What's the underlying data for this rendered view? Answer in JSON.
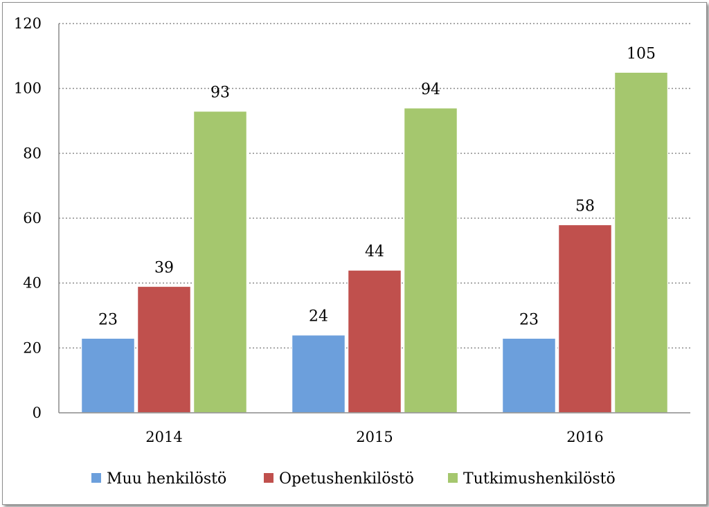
{
  "chart_data": {
    "type": "bar",
    "categories": [
      "2014",
      "2015",
      "2016"
    ],
    "series": [
      {
        "name": "Muu henkilöstö",
        "values": [
          23,
          24,
          23
        ],
        "color": "#6c9fdc"
      },
      {
        "name": "Opetushenkilöstö",
        "values": [
          39,
          44,
          58
        ],
        "color": "#c0504d"
      },
      {
        "name": "Tutkimushenkilöstö",
        "values": [
          93,
          94,
          105
        ],
        "color": "#a5c76e"
      }
    ],
    "title": "",
    "xlabel": "",
    "ylabel": "",
    "ylim": [
      0,
      120
    ],
    "yticks": [
      0,
      20,
      40,
      60,
      80,
      100,
      120
    ],
    "grid": true,
    "legend_position": "bottom"
  }
}
